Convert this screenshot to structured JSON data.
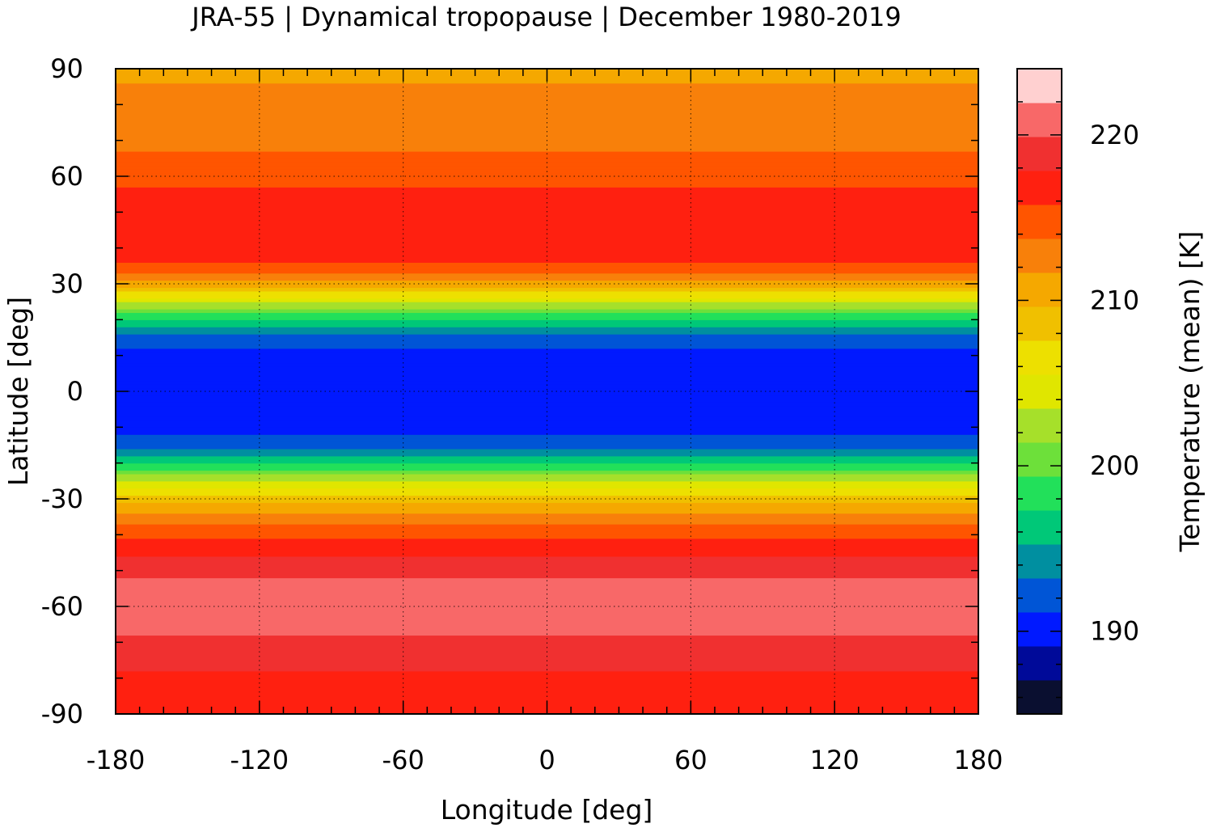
{
  "chart_data": {
    "type": "heatmap",
    "title": "JRA-55 | Dynamical tropopause | December 1980-2019",
    "xlabel": "Longitude [deg]",
    "ylabel": "Latitude [deg]",
    "xlim": [
      -180,
      180
    ],
    "ylim": [
      -90,
      90
    ],
    "xticks": [
      -180,
      -120,
      -60,
      0,
      60,
      120,
      180
    ],
    "yticks": [
      90,
      60,
      30,
      0,
      -30,
      -60,
      -90
    ],
    "xtick_labels": [
      "-180",
      "-120",
      "-60",
      "0",
      "60",
      "120",
      "180"
    ],
    "ytick_labels": [
      "90",
      "60",
      "30",
      "0",
      "-30",
      "-60",
      "-90"
    ],
    "grid": true,
    "colorbar": {
      "label": "Temperature (mean) [K]",
      "min": 185,
      "max": 224,
      "ticks": [
        190,
        200,
        210,
        220
      ],
      "tick_labels": [
        "190",
        "200",
        "210",
        "220"
      ],
      "colors": [
        "#0a0f30",
        "#000a99",
        "#0019ff",
        "#0055d6",
        "#008fa0",
        "#00c878",
        "#22e05a",
        "#6de03a",
        "#a6e02a",
        "#e0e600",
        "#ede000",
        "#f0c000",
        "#f5a800",
        "#f8800a",
        "#ff5500",
        "#ff2010",
        "#f03030",
        "#f86868",
        "#ffd0d0"
      ]
    },
    "zonal_mean_profile": {
      "latitude": [
        -90,
        -80,
        -70,
        -60,
        -50,
        -40,
        -32,
        -25,
        -20,
        -15,
        -10,
        0,
        10,
        15,
        20,
        25,
        30,
        35,
        40,
        50,
        60,
        70,
        80,
        90
      ],
      "temperature": [
        217.5,
        217.5,
        219.5,
        221.5,
        219.5,
        215.5,
        210.5,
        203.5,
        197.5,
        192.5,
        190.5,
        190,
        190.5,
        192.5,
        197.5,
        203.5,
        210.5,
        215.5,
        216.5,
        216.5,
        215.5,
        213,
        212,
        211.5
      ]
    }
  }
}
